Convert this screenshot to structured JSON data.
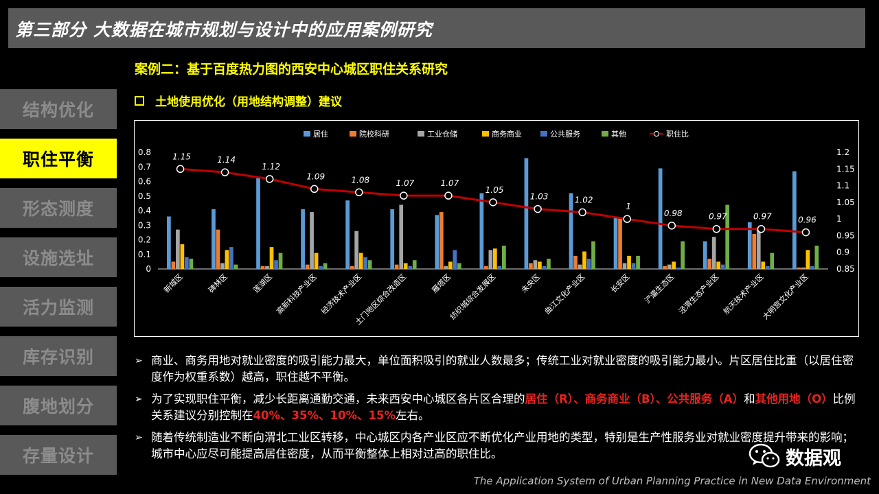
{
  "header": {
    "title": "第三部分  大数据在城市规划与设计中的应用案例研究"
  },
  "sidebar": {
    "items": [
      {
        "label": "结构优化",
        "active": false
      },
      {
        "label": "职住平衡",
        "active": true
      },
      {
        "label": "形态测度",
        "active": false
      },
      {
        "label": "设施选址",
        "active": false
      },
      {
        "label": "活力监测",
        "active": false
      },
      {
        "label": "库存识别",
        "active": false
      },
      {
        "label": "腹地划分",
        "active": false
      },
      {
        "label": "存量设计",
        "active": false
      }
    ]
  },
  "main": {
    "case_title": "案例二：基于百度热力图的西安中心城区职住关系研究",
    "sub_title": "土地使用优化（用地结构调整）建议"
  },
  "chart_data": {
    "type": "bar",
    "categories": [
      "新城区",
      "碑林区",
      "莲湖区",
      "高新科技产业区",
      "经济技术产业区",
      "土门地区综合改造区",
      "雁塔区",
      "纺织城综合发展区",
      "未央区",
      "曲江文化产业区",
      "长安区",
      "浐灞生态区",
      "泾渭生态产业区",
      "航天技术产业区",
      "大明宫文化产业区"
    ],
    "series": [
      {
        "name": "居住",
        "color": "#5B9BD5",
        "values": [
          0.36,
          0.41,
          0.63,
          0.41,
          0.47,
          0.41,
          0.37,
          0.52,
          0.76,
          0.52,
          0.36,
          0.69,
          0.19,
          0.32,
          0.67
        ]
      },
      {
        "name": "院校科研",
        "color": "#ED7D31",
        "values": [
          0.05,
          0.27,
          0.02,
          0.03,
          0.02,
          0.03,
          0.39,
          0.02,
          0.04,
          0.09,
          0.35,
          0.02,
          0.07,
          0.24,
          0.01
        ]
      },
      {
        "name": "工业仓储",
        "color": "#A5A5A5",
        "values": [
          0.27,
          0.04,
          0.02,
          0.39,
          0.26,
          0.44,
          0.02,
          0.13,
          0.06,
          0.03,
          0.04,
          0.03,
          0.22,
          0.27,
          0.01
        ]
      },
      {
        "name": "商务商业",
        "color": "#FFC000",
        "values": [
          0.17,
          0.13,
          0.15,
          0.11,
          0.11,
          0.04,
          0.05,
          0.14,
          0.05,
          0.12,
          0.09,
          0.05,
          0.05,
          0.05,
          0.13
        ]
      },
      {
        "name": "公共服务",
        "color": "#4472C4",
        "values": [
          0.08,
          0.15,
          0.06,
          0.02,
          0.08,
          0.02,
          0.13,
          0.02,
          0.02,
          0.07,
          0.04,
          0.01,
          0.03,
          0.02,
          0.02
        ]
      },
      {
        "name": "其他",
        "color": "#70AD47",
        "values": [
          0.07,
          0.03,
          0.11,
          0.04,
          0.06,
          0.06,
          0.04,
          0.16,
          0.07,
          0.19,
          0.09,
          0.19,
          0.44,
          0.11,
          0.16
        ]
      }
    ],
    "line_series": {
      "name": "职住比",
      "color": "#C00000",
      "values": [
        1.15,
        1.14,
        1.12,
        1.09,
        1.08,
        1.07,
        1.07,
        1.05,
        1.03,
        1.02,
        1,
        0.98,
        0.97,
        0.97,
        0.96
      ],
      "labels": [
        "1.15",
        "1.14",
        "1.12",
        "1.09",
        "1.08",
        "1.07",
        "1.07",
        "1.05",
        "1.03",
        "1.02",
        "1",
        "0.98",
        "0.97",
        "0.97",
        "0.96"
      ]
    },
    "ylim": [
      0,
      0.8
    ],
    "yticks": [
      "0",
      "0.1",
      "0.2",
      "0.3",
      "0.4",
      "0.5",
      "0.6",
      "0.7",
      "0.8"
    ],
    "y2lim": [
      0.85,
      1.2
    ],
    "y2ticks": [
      "0.85",
      "0.9",
      "0.95",
      "1",
      "1.05",
      "1.1",
      "1.15",
      "1.2"
    ],
    "legend_position": "top"
  },
  "bullets": [
    {
      "parts": [
        {
          "text": "商业、商务用地对就业密度的吸引能力最大，单位面积吸引的就业人数最多；传统工业对就业密度的吸引能力最小。片区居住比重（以居住密度作为权重系数）越高，职住越不平衡。",
          "red": false
        }
      ]
    },
    {
      "parts": [
        {
          "text": "为了实现职住平衡，减少长距离通勤交通，未来西安中心城区各片区合理的",
          "red": false
        },
        {
          "text": "居住（R）、商务商业（B）、公共服务（A）",
          "red": true
        },
        {
          "text": "和",
          "red": false
        },
        {
          "text": "其他用地（O）",
          "red": true
        },
        {
          "text": "比例关系建议分别控制在",
          "red": false
        },
        {
          "text": "40%、35%、10%、15%",
          "red": true
        },
        {
          "text": "左右。",
          "red": false
        }
      ]
    },
    {
      "parts": [
        {
          "text": "随着传统制造业不断向渭北工业区转移，中心城区内各产业区应不断优化产业用地的类型，特别是生产性服务业对就业密度提升带来的影响；城市中心应尽可能提高居住密度，从而平衡整体上相对过高的职住比。",
          "red": false
        }
      ]
    }
  ],
  "bullet_marker": "➢",
  "logo": {
    "text": "数据观",
    "icon": "wechat-icon"
  },
  "footer": {
    "text": "The Application System of Urban Planning Practice in New Data Environment"
  }
}
